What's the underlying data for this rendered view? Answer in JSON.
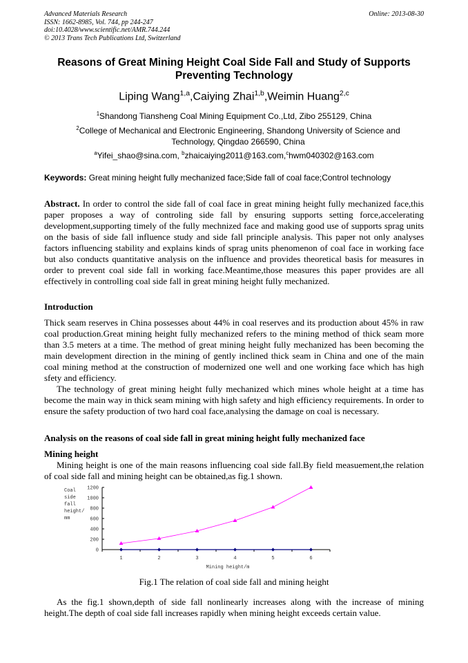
{
  "header": {
    "journal": "Advanced Materials Research",
    "issn": "ISSN: 1662-8985, Vol. 744, pp 244-247",
    "doi": "doi:10.4028/www.scientific.net/AMR.744.244",
    "copyright": "© 2013 Trans Tech Publications Ltd, Switzerland",
    "online": "Online: 2013-08-30"
  },
  "title": "Reasons of Great Mining Height Coal Side Fall and Study of  Supports Preventing Technology",
  "authors": [
    {
      "name": "Liping Wang",
      "sup": "1,a"
    },
    {
      "name": ",Caiying Zhai",
      "sup": "1,b"
    },
    {
      "name": ",Weimin Huang",
      "sup": "2,c"
    }
  ],
  "affiliations": [
    {
      "sup": "1",
      "text": "Shandong Tiansheng Coal Mining Equipment Co.,Ltd, Zibo 255129, China"
    },
    {
      "sup": "2",
      "text": "College of Mechanical and Electronic Engineering, Shandong University of Science and Technology, Qingdao 266590, China"
    }
  ],
  "emails": [
    {
      "sup": "a",
      "text": "Yifei_shao@sina.com, "
    },
    {
      "sup": "b",
      "text": "zhaicaiying2011@163.com,"
    },
    {
      "sup": "c",
      "text": "hwm040302@163.com"
    }
  ],
  "keywords": {
    "label": "Keywords:",
    "text": " Great mining height fully mechanized face;Side fall of coal face;Control technology"
  },
  "abstract": {
    "label": "Abstract.",
    "text": " In order to control the side fall of coal face in great mining height fully mechanized face,this paper proposes a way of controling side fall by ensuring supports setting force,accelerating development,supporting timely of the fully mechnized face and making good use of supports sprag units on the basis of side fall influence study and side fall principle analysis. This paper not only analyses factors influencing stability and explains kinds of sprag units phenomenon of coal face in working face but also conducts quantitative analysis on the influence and provides theoretical basis for measures in order to prevent coal side fall in working face.Meantime,those measures this paper provides are all effectively in controlling coal side fall in great mining height fully mechanized."
  },
  "intro": {
    "heading": "Introduction",
    "p1": "Thick seam reserves in China possesses about 44% in coal reserves and its production about 45% in raw coal production.Great mining height fully mechanized refers to the mining method of thick seam more than 3.5 meters at a time. The method of great mining height fully mechanized has been becoming the main development direction in the mining of gently inclined thick seam in China and one of the main coal mining method at the construction of modernized one well and one working face which has high sfety and efficiency.",
    "p2": "The technology of great mining height fully mechanized which mines whole height at a time has become the main way in thick seam mining with high safety and high efficiency requirements. In order to ensure the safety production of two hard coal face,analysing the damage on coal is necessary."
  },
  "analysis": {
    "heading": "Analysis on the reasons of coal side fall in great mining height fully mechanized face",
    "sub": "Mining height",
    "p1": "Mining height is one of the main reasons influencing coal side fall.By field measuement,the relation of coal side fall and mining height can be obtained,as fig.1 shown."
  },
  "chart_data": {
    "type": "line",
    "x": [
      1,
      2,
      3,
      4,
      5,
      6
    ],
    "xlabel": "Mining height/m",
    "ylabel": "Coal side fall height/ mm",
    "ylim": [
      0,
      1200
    ],
    "yticks": [
      0,
      200,
      400,
      600,
      800,
      1000,
      1200
    ],
    "xticks": [
      1,
      2,
      3,
      4,
      5,
      6
    ],
    "series": [
      {
        "values": [
          120,
          215,
          360,
          560,
          820,
          1200
        ],
        "color": "#ff00ff",
        "marker": "triangle"
      },
      {
        "values": [
          0,
          0,
          0,
          0,
          0,
          0
        ],
        "color": "#000080",
        "marker": "diamond"
      }
    ],
    "grid": false
  },
  "figure_caption": "Fig.1 The relation of coal side fall and mining height",
  "after": "As the fig.1 shown,depth of side fall nonlinearly increases along with the increase of mining height.The depth of coal side fall increases rapidly when mining height exceeds certain value."
}
